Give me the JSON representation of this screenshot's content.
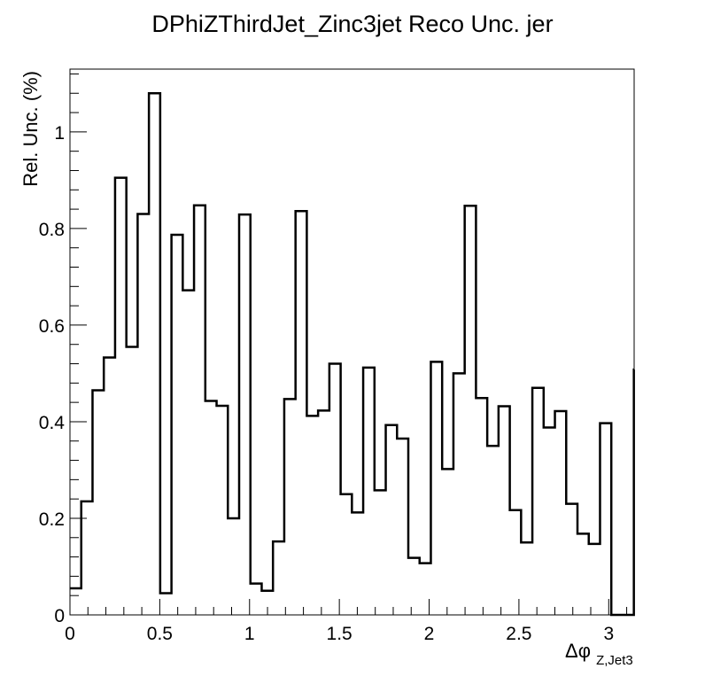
{
  "chart_data": {
    "type": "bar",
    "title": "DPhiZThirdJet_Zinc3jet Reco Unc. jer",
    "xlabel": "Δφ",
    "xlabel_subscript": "Z,Jet3",
    "ylabel": "Rel. Unc. (%)",
    "xlim": [
      0,
      3.1416
    ],
    "ylim": [
      0,
      1.13
    ],
    "x_ticks": [
      0,
      0.5,
      1,
      1.5,
      2,
      2.5,
      3
    ],
    "x_tick_labels": [
      "0",
      "0.5",
      "1",
      "1.5",
      "2",
      "2.5",
      "3"
    ],
    "y_ticks": [
      0,
      0.2,
      0.4,
      0.6,
      0.8,
      1
    ],
    "y_tick_labels": [
      "0",
      "0.2",
      "0.4",
      "0.6",
      "0.8",
      "1"
    ],
    "bin_width": 0.0628,
    "values": [
      0.055,
      0.235,
      0.465,
      0.533,
      0.905,
      0.555,
      0.83,
      1.08,
      0.045,
      0.787,
      0.672,
      0.848,
      0.443,
      0.433,
      0.2,
      0.829,
      0.065,
      0.05,
      0.152,
      0.447,
      0.836,
      0.412,
      0.423,
      0.52,
      0.25,
      0.212,
      0.512,
      0.258,
      0.393,
      0.365,
      0.118,
      0.107,
      0.524,
      0.302,
      0.5,
      0.847,
      0.449,
      0.35,
      0.432,
      0.217,
      0.15,
      0.47,
      0.388,
      0.422,
      0.23,
      0.168,
      0.147,
      0.397,
      0.0,
      0.0,
      0.508
    ],
    "line_color": "#000000",
    "grid": false
  }
}
